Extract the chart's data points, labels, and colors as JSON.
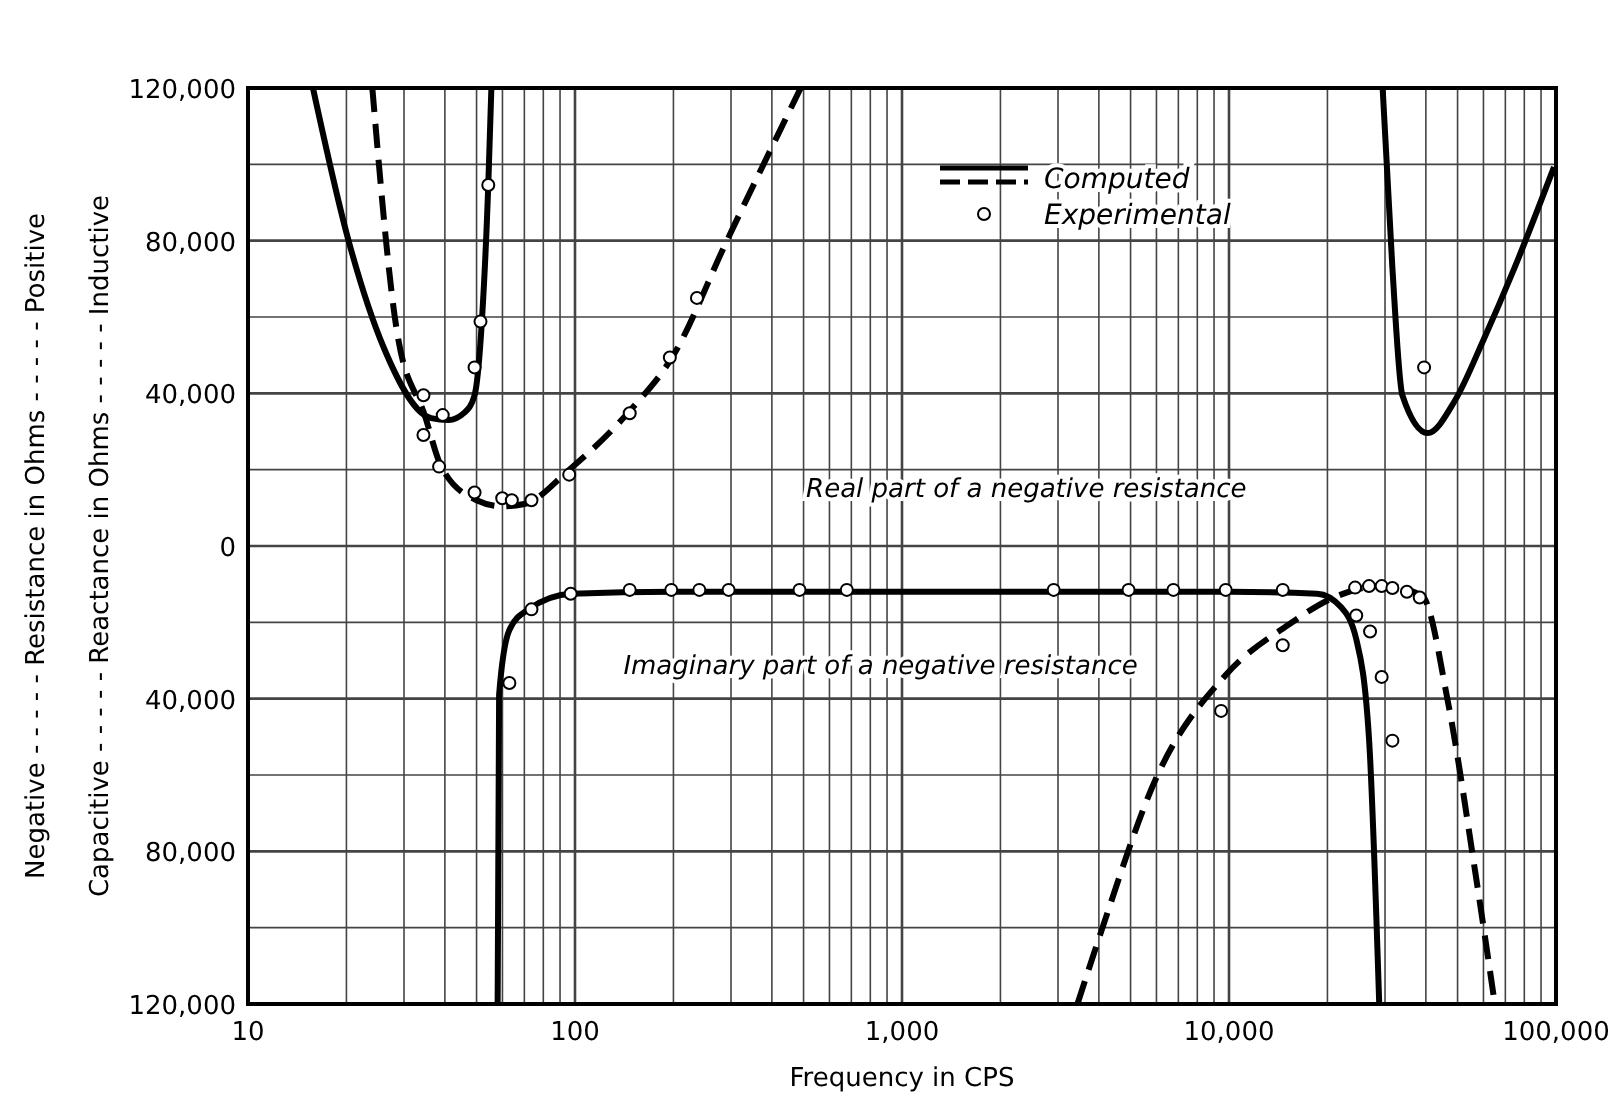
{
  "chart_data": {
    "type": "line",
    "xlabel": "Frequency in CPS",
    "ylabel": "Negative - - - - - Resistance in Ohms - - - - - Positive",
    "annotations": [
      "Capacitive - - - - - Reactance in Ohms - - - - - Inductive",
      "Real part of a negative resistance",
      "Imaginary part of a negative resistance"
    ],
    "log": "x",
    "grid": true,
    "legend": "top",
    "xlim": [
      10,
      100000
    ],
    "xticks": [
      {
        "value": 10,
        "label": "10"
      },
      {
        "value": 20,
        "label": null
      },
      {
        "value": 30,
        "label": null
      },
      {
        "value": 40,
        "label": null
      },
      {
        "value": 50,
        "label": null
      },
      {
        "value": 60,
        "label": null
      },
      {
        "value": 70,
        "label": null
      },
      {
        "value": 80,
        "label": null
      },
      {
        "value": 90,
        "label": null
      },
      {
        "value": 100,
        "label": "100"
      },
      {
        "value": 200,
        "label": null
      },
      {
        "value": 300,
        "label": null
      },
      {
        "value": 400,
        "label": null
      },
      {
        "value": 500,
        "label": null
      },
      {
        "value": 600,
        "label": null
      },
      {
        "value": 700,
        "label": null
      },
      {
        "value": 800,
        "label": null
      },
      {
        "value": 900,
        "label": null
      },
      {
        "value": 1000,
        "label": "1,000"
      },
      {
        "value": 2000,
        "label": null
      },
      {
        "value": 3000,
        "label": null
      },
      {
        "value": 4000,
        "label": null
      },
      {
        "value": 5000,
        "label": null
      },
      {
        "value": 6000,
        "label": null
      },
      {
        "value": 7000,
        "label": null
      },
      {
        "value": 8000,
        "label": null
      },
      {
        "value": 9000,
        "label": null
      },
      {
        "value": 10000,
        "label": "10,000"
      },
      {
        "value": 20000,
        "label": null
      },
      {
        "value": 30000,
        "label": null
      },
      {
        "value": 40000,
        "label": null
      },
      {
        "value": 50000,
        "label": null
      },
      {
        "value": 60000,
        "label": null
      },
      {
        "value": 70000,
        "label": null
      },
      {
        "value": 80000,
        "label": null
      },
      {
        "value": 90000,
        "label": null
      },
      {
        "value": 100000,
        "label": "100,000"
      }
    ],
    "ylim": [
      -120000,
      120000
    ],
    "yticks": [
      {
        "value": -120000,
        "label": "120,000"
      },
      {
        "value": -100000,
        "label": null
      },
      {
        "value": -80000,
        "label": "80,000"
      },
      {
        "value": -60000,
        "label": null
      },
      {
        "value": -40000,
        "label": "40,000"
      },
      {
        "value": -20000,
        "label": null
      },
      0,
      {
        "value": 20000,
        "label": null
      },
      {
        "value": 40000,
        "label": "40,000"
      },
      {
        "value": 60000,
        "label": null
      },
      {
        "value": 80000,
        "label": "80,000"
      },
      {
        "value": 100000,
        "label": null
      },
      {
        "value": 120000,
        "label": "120,000"
      }
    ],
    "series": [
      {
        "name": "Computed",
        "line_style": "solid",
        "color": "#000000",
        "x": [
          15.8,
          20.3,
          26,
          36.3,
          41,
          46,
          49.3,
          52,
          54.3,
          55.5
        ],
        "values": [
          120000,
          80000,
          52000,
          33500,
          33000,
          35000,
          39500,
          60000,
          94600,
          120000
        ]
      },
      {
        "line_style": "dashed",
        "color": "#000000",
        "x": [
          24,
          28.7,
          34.7,
          39,
          50,
          60,
          70,
          95.5,
          147,
          200,
          290,
          490
        ],
        "values": [
          120000,
          55000,
          34300,
          20800,
          12000,
          10400,
          11000,
          19800,
          35400,
          50000,
          79600,
          120000
        ]
      },
      {
        "line_style": "solid",
        "color": "#000000",
        "x": [
          29500,
          31600,
          33900,
          40500,
          49000,
          60000,
          74600,
          98600
        ],
        "values": [
          120000,
          72800,
          39500,
          29600,
          38000,
          54000,
          72800,
          99300
        ]
      },
      {
        "line_style": "solid",
        "color": "#000000",
        "x": [
          58,
          58.6,
          63,
          72,
          98,
          200,
          1000,
          10000,
          18600,
          22000,
          24500,
          26800,
          28800
        ],
        "values": [
          -120000,
          -39000,
          -22000,
          -16600,
          -12500,
          -12000,
          -12000,
          -12000,
          -12500,
          -16000,
          -24400,
          -50400,
          -120000
        ]
      },
      {
        "line_style": "dashed",
        "color": "#000000",
        "x": [
          3440,
          4070,
          5990,
          9770,
          15400,
          20300,
          29500,
          38900,
          46900,
          56600,
          65000
        ],
        "values": [
          -120000,
          -100900,
          -60800,
          -33800,
          -20300,
          -14000,
          -10400,
          -13000,
          -41600,
          -85300,
          -120000
        ]
      },
      {
        "name": "Experimental",
        "type": "scatter",
        "marker": "circle",
        "color": "#000000",
        "x": [
          34.4,
          39.4,
          34.4,
          38.4,
          49.3,
          49.3,
          51.4,
          54.3,
          59.9,
          64.1,
          73.6,
          96,
          147,
          195,
          236,
          39500,
          63,
          73.6,
          97,
          147,
          197,
          240,
          295,
          486,
          678,
          2910,
          4930,
          6760,
          9770,
          14600,
          24300,
          26800,
          29300,
          31600,
          35000,
          38300,
          24500,
          27000,
          29300,
          31600,
          14600,
          9460
        ],
        "values": [
          39500,
          34300,
          29100,
          20800,
          14000,
          46800,
          58800,
          94600,
          12500,
          12000,
          12000,
          18700,
          34800,
          49400,
          65000,
          46800,
          -35900,
          -16600,
          -12500,
          -11500,
          -11500,
          -11500,
          -11500,
          -11500,
          -11500,
          -11500,
          -11500,
          -11500,
          -11500,
          -11500,
          -10900,
          -10500,
          -10500,
          -11000,
          -12000,
          -13500,
          -18200,
          -22400,
          -34300,
          -51000,
          -26000,
          -43200
        ]
      }
    ]
  }
}
